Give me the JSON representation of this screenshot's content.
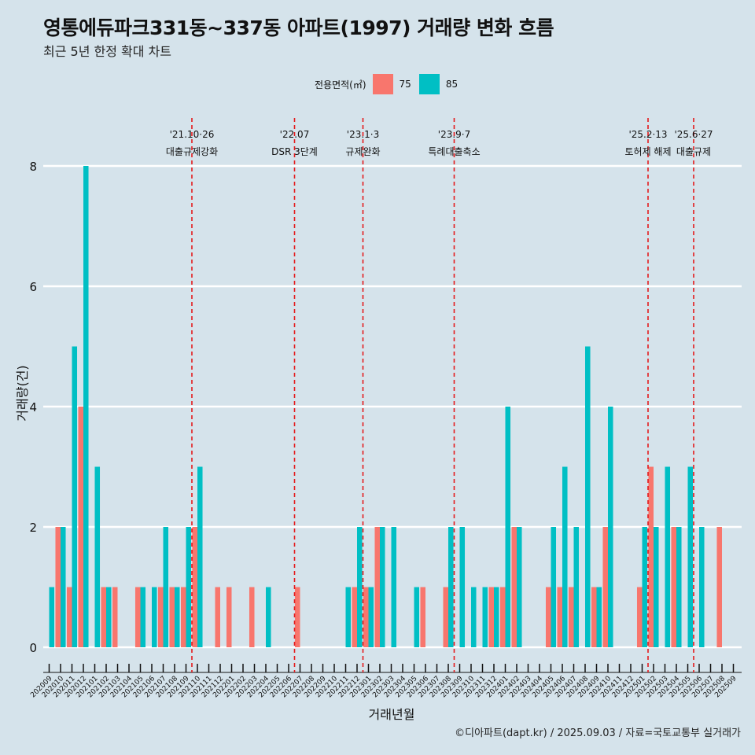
{
  "chart_data": {
    "type": "bar",
    "title": "영통에듀파크331동~337동 아파트(1997) 거래량 변화 흐름",
    "subtitle": "최근 5년 한정 확대 차트",
    "xlabel": "거래년월",
    "ylabel": "거래량(건)",
    "legend_title": "전용면적(㎡)",
    "legend_position": "top",
    "caption": "©디아파트(dapt.kr) / 2025.09.03 / 자료=국토교통부 실거래가",
    "ylim": [
      0,
      8.5
    ],
    "yticks": [
      0,
      2,
      4,
      6,
      8
    ],
    "grid": true,
    "categories": [
      "202009",
      "202010",
      "202011",
      "202012",
      "202101",
      "202102",
      "202103",
      "202104",
      "202105",
      "202106",
      "202107",
      "202108",
      "202109",
      "202110",
      "202111",
      "202112",
      "202201",
      "202202",
      "202203",
      "202204",
      "202205",
      "202206",
      "202207",
      "202208",
      "202209",
      "202210",
      "202211",
      "202212",
      "202301",
      "202302",
      "202303",
      "202304",
      "202305",
      "202306",
      "202307",
      "202308",
      "202309",
      "202310",
      "202311",
      "202312",
      "202401",
      "202402",
      "202403",
      "202404",
      "202405",
      "202406",
      "202407",
      "202408",
      "202409",
      "202410",
      "202411",
      "202412",
      "202501",
      "202502",
      "202503",
      "202504",
      "202505",
      "202506",
      "202507",
      "202508",
      "202509"
    ],
    "series": [
      {
        "name": "75",
        "color": "#f8766d",
        "values": [
          0,
          2,
          1,
          4,
          0,
          1,
          1,
          0,
          1,
          0,
          1,
          1,
          1,
          2,
          0,
          1,
          1,
          0,
          1,
          0,
          0,
          0,
          1,
          0,
          0,
          0,
          0,
          1,
          1,
          2,
          0,
          0,
          0,
          1,
          0,
          1,
          0,
          0,
          0,
          1,
          1,
          2,
          0,
          0,
          1,
          1,
          1,
          0,
          1,
          2,
          0,
          0,
          1,
          3,
          0,
          2,
          0,
          0,
          0,
          2,
          0
        ]
      },
      {
        "name": "85",
        "color": "#00bfc4",
        "values": [
          1,
          2,
          5,
          8,
          3,
          1,
          0,
          0,
          1,
          1,
          2,
          1,
          2,
          3,
          0,
          0,
          0,
          0,
          0,
          1,
          0,
          0,
          0,
          0,
          0,
          0,
          1,
          2,
          1,
          2,
          2,
          0,
          1,
          0,
          0,
          2,
          2,
          1,
          1,
          1,
          4,
          2,
          0,
          0,
          2,
          3,
          2,
          5,
          1,
          4,
          0,
          0,
          2,
          2,
          3,
          2,
          3,
          2,
          0,
          0,
          0
        ]
      }
    ],
    "annotations": [
      {
        "at": "202110",
        "date": "'21.10·26",
        "label": "대출규제강화"
      },
      {
        "at": "202207",
        "date": "'22.07",
        "label": "DSR 3단계"
      },
      {
        "at": "202301",
        "date": "'23.1·3",
        "label": "규제완화"
      },
      {
        "at": "202309",
        "date": "'23.9·7",
        "label": "특례대출축소"
      },
      {
        "at": "202502",
        "date": "'25.2·13",
        "label": "토허제 해제"
      },
      {
        "at": "202506",
        "date": "'25.6·27",
        "label": "대출규제"
      }
    ],
    "annotation_line_color": "#e41a1c"
  }
}
